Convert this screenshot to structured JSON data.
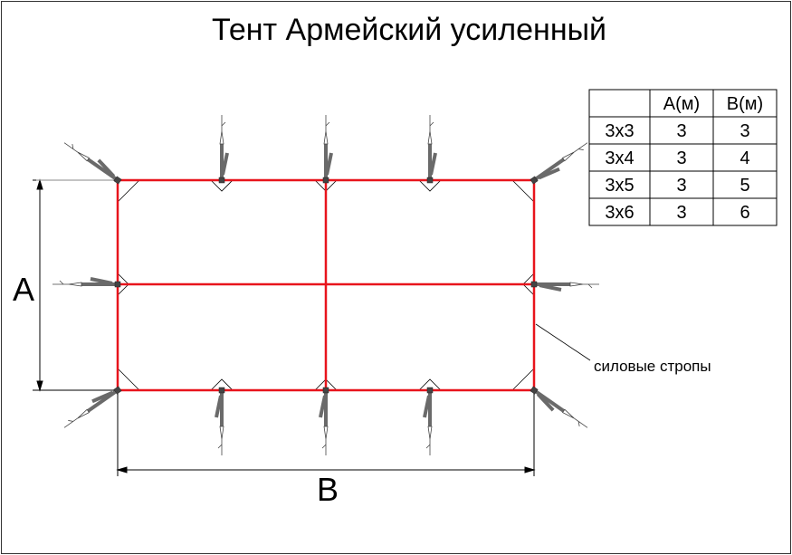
{
  "title": "Тент Армейский усиленный",
  "table": {
    "headers": [
      "",
      "A(м)",
      "B(м)"
    ],
    "rows": [
      [
        "3x3",
        "3",
        "3"
      ],
      [
        "3x4",
        "3",
        "4"
      ],
      [
        "3x5",
        "3",
        "5"
      ],
      [
        "3x6",
        "3",
        "6"
      ]
    ]
  },
  "dimensions": {
    "a_label": "A",
    "b_label": "B"
  },
  "annotation": "силовые стропы",
  "colors": {
    "straps": "#e8141c",
    "ties": "#6a6a6a"
  }
}
